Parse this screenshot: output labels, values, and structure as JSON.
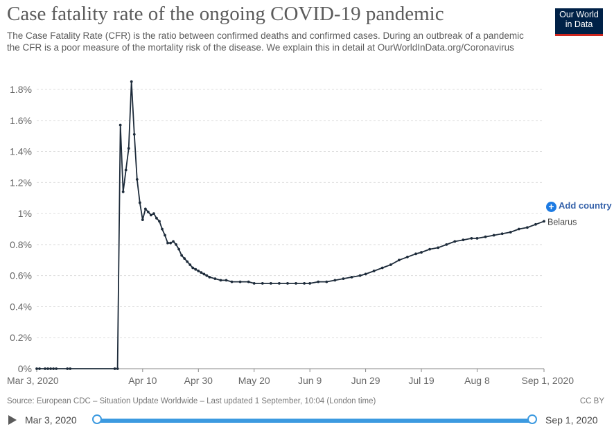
{
  "header": {
    "title": "Case fatality rate of the ongoing COVID-19 pandemic",
    "subtitle": "The Case Fatality Rate (CFR) is the ratio between confirmed deaths and confirmed cases. During an outbreak of a pandemic the CFR is a poor measure of the mortality risk of the disease. We explain this in detail at OurWorldInData.org/Coronavirus",
    "logo_line1": "Our World",
    "logo_line2": "in Data"
  },
  "controls": {
    "add_country": "Add country",
    "add_icon": "plus-circle-icon"
  },
  "footer": {
    "source": "Source: European CDC – Situation Update Worldwide – Last updated 1 September, 10:04 (London time)",
    "license": "CC BY"
  },
  "timeline": {
    "start_label": "Mar 3, 2020",
    "end_label": "Sep 1, 2020",
    "start_fraction": 0,
    "end_fraction": 1
  },
  "colors": {
    "line": "#1d2b3a",
    "grid": "#dddddd",
    "accent": "#3c9ae0",
    "logo_bg": "#002147",
    "logo_stripe": "#ce261e"
  },
  "chart_data": {
    "type": "line",
    "ylabel_unit": "%",
    "ylim": [
      0,
      1.8
    ],
    "yticks": [
      "0%",
      "0.2%",
      "0.4%",
      "0.6%",
      "0.8%",
      "1%",
      "1.2%",
      "1.4%",
      "1.6%",
      "1.8%"
    ],
    "ytick_values": [
      0,
      0.2,
      0.4,
      0.6,
      0.8,
      1.0,
      1.2,
      1.4,
      1.6,
      1.8
    ],
    "x_start": "2020-03-03",
    "x_end": "2020-09-01",
    "xticks": [
      {
        "date": "2020-03-03",
        "label": "Mar 3, 2020"
      },
      {
        "date": "2020-04-10",
        "label": "Apr 10"
      },
      {
        "date": "2020-04-30",
        "label": "Apr 30"
      },
      {
        "date": "2020-05-20",
        "label": "May 20"
      },
      {
        "date": "2020-06-09",
        "label": "Jun 9"
      },
      {
        "date": "2020-06-29",
        "label": "Jun 29"
      },
      {
        "date": "2020-07-19",
        "label": "Jul 19"
      },
      {
        "date": "2020-08-08",
        "label": "Aug 8"
      },
      {
        "date": "2020-09-01",
        "label": "Sep 1, 2020"
      }
    ],
    "grid": true,
    "series": [
      {
        "name": "Belarus",
        "points": [
          [
            "2020-03-03",
            0
          ],
          [
            "2020-03-04",
            0
          ],
          [
            "2020-03-06",
            0
          ],
          [
            "2020-03-07",
            0
          ],
          [
            "2020-03-08",
            0
          ],
          [
            "2020-03-09",
            0
          ],
          [
            "2020-03-10",
            0
          ],
          [
            "2020-03-14",
            0
          ],
          [
            "2020-03-15",
            0
          ],
          [
            "2020-03-31",
            0
          ],
          [
            "2020-04-01",
            0
          ],
          [
            "2020-04-02",
            1.57
          ],
          [
            "2020-04-03",
            1.14
          ],
          [
            "2020-04-04",
            1.28
          ],
          [
            "2020-04-05",
            1.42
          ],
          [
            "2020-04-06",
            1.85
          ],
          [
            "2020-04-07",
            1.51
          ],
          [
            "2020-04-08",
            1.22
          ],
          [
            "2020-04-09",
            1.07
          ],
          [
            "2020-04-10",
            0.96
          ],
          [
            "2020-04-11",
            1.03
          ],
          [
            "2020-04-12",
            1.01
          ],
          [
            "2020-04-13",
            0.99
          ],
          [
            "2020-04-14",
            1.0
          ],
          [
            "2020-04-15",
            0.97
          ],
          [
            "2020-04-16",
            0.95
          ],
          [
            "2020-04-17",
            0.9
          ],
          [
            "2020-04-18",
            0.86
          ],
          [
            "2020-04-19",
            0.81
          ],
          [
            "2020-04-20",
            0.81
          ],
          [
            "2020-04-21",
            0.82
          ],
          [
            "2020-04-22",
            0.8
          ],
          [
            "2020-04-23",
            0.77
          ],
          [
            "2020-04-24",
            0.73
          ],
          [
            "2020-04-25",
            0.71
          ],
          [
            "2020-04-26",
            0.69
          ],
          [
            "2020-04-27",
            0.67
          ],
          [
            "2020-04-28",
            0.65
          ],
          [
            "2020-04-29",
            0.64
          ],
          [
            "2020-04-30",
            0.63
          ],
          [
            "2020-05-01",
            0.62
          ],
          [
            "2020-05-02",
            0.61
          ],
          [
            "2020-05-03",
            0.6
          ],
          [
            "2020-05-04",
            0.59
          ],
          [
            "2020-05-06",
            0.58
          ],
          [
            "2020-05-08",
            0.57
          ],
          [
            "2020-05-10",
            0.57
          ],
          [
            "2020-05-12",
            0.56
          ],
          [
            "2020-05-15",
            0.56
          ],
          [
            "2020-05-18",
            0.56
          ],
          [
            "2020-05-20",
            0.55
          ],
          [
            "2020-05-23",
            0.55
          ],
          [
            "2020-05-26",
            0.55
          ],
          [
            "2020-05-29",
            0.55
          ],
          [
            "2020-06-01",
            0.55
          ],
          [
            "2020-06-04",
            0.55
          ],
          [
            "2020-06-07",
            0.55
          ],
          [
            "2020-06-09",
            0.55
          ],
          [
            "2020-06-12",
            0.56
          ],
          [
            "2020-06-15",
            0.56
          ],
          [
            "2020-06-18",
            0.57
          ],
          [
            "2020-06-21",
            0.58
          ],
          [
            "2020-06-24",
            0.59
          ],
          [
            "2020-06-27",
            0.6
          ],
          [
            "2020-06-29",
            0.61
          ],
          [
            "2020-07-02",
            0.63
          ],
          [
            "2020-07-05",
            0.65
          ],
          [
            "2020-07-08",
            0.67
          ],
          [
            "2020-07-11",
            0.7
          ],
          [
            "2020-07-14",
            0.72
          ],
          [
            "2020-07-17",
            0.74
          ],
          [
            "2020-07-19",
            0.75
          ],
          [
            "2020-07-22",
            0.77
          ],
          [
            "2020-07-25",
            0.78
          ],
          [
            "2020-07-28",
            0.8
          ],
          [
            "2020-07-31",
            0.82
          ],
          [
            "2020-08-03",
            0.83
          ],
          [
            "2020-08-06",
            0.84
          ],
          [
            "2020-08-08",
            0.84
          ],
          [
            "2020-08-11",
            0.85
          ],
          [
            "2020-08-14",
            0.86
          ],
          [
            "2020-08-17",
            0.87
          ],
          [
            "2020-08-20",
            0.88
          ],
          [
            "2020-08-23",
            0.9
          ],
          [
            "2020-08-26",
            0.91
          ],
          [
            "2020-08-29",
            0.93
          ],
          [
            "2020-09-01",
            0.95
          ]
        ]
      }
    ]
  }
}
